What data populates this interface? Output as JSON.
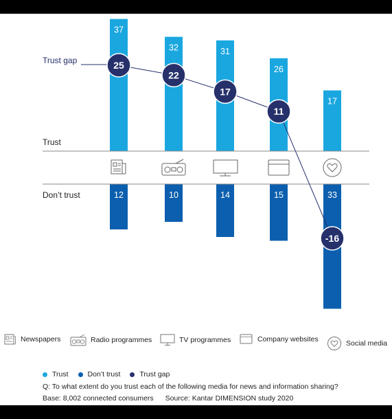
{
  "chart_data": {
    "type": "bar",
    "categories": [
      "Newspapers",
      "Radio programmes",
      "TV programmes",
      "Company websites",
      "Social media"
    ],
    "series": [
      {
        "name": "Trust",
        "values": [
          37,
          32,
          31,
          26,
          17
        ]
      },
      {
        "name": "Don’t trust",
        "values": [
          12,
          10,
          14,
          15,
          33
        ]
      },
      {
        "name": "Trust gap",
        "values": [
          25,
          22,
          17,
          11,
          -16
        ]
      }
    ],
    "labels": {
      "trust_gap": "Trust gap",
      "trust": "Trust",
      "dont_trust": "Don’t trust"
    },
    "colors": {
      "trust": "#1aa7e0",
      "dont_trust": "#0c5fae",
      "gap": "#26306b",
      "line": "#26306b",
      "axis": "#8a8a8a"
    }
  },
  "category_legend": [
    {
      "label": "Newspapers",
      "icon": "newspaper-icon"
    },
    {
      "label": "Radio programmes",
      "icon": "radio-icon"
    },
    {
      "label": "TV programmes",
      "icon": "tv-icon"
    },
    {
      "label": "Company websites",
      "icon": "browser-window-icon"
    },
    {
      "label": "Social media",
      "icon": "heart-icon"
    }
  ],
  "series_legend": [
    {
      "label": "Trust",
      "color": "#1aa7e0"
    },
    {
      "label": "Don’t trust",
      "color": "#0c5fae"
    },
    {
      "label": "Trust gap",
      "color": "#26306b"
    }
  ],
  "notes": {
    "question": "Q: To what extent do you trust each of the following media for news and information sharing?",
    "base": "Base: 8,002 connected consumers",
    "source": "Source: Kantar DIMENSION study 2020"
  }
}
